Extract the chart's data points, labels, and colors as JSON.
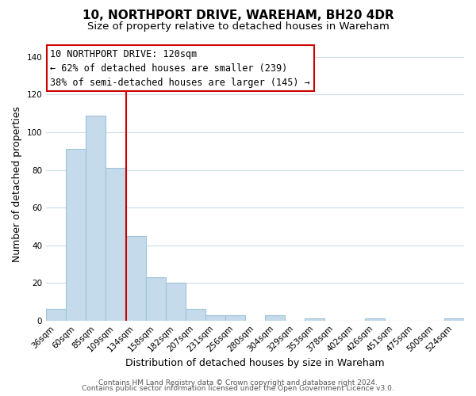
{
  "title": "10, NORTHPORT DRIVE, WAREHAM, BH20 4DR",
  "subtitle": "Size of property relative to detached houses in Wareham",
  "xlabel": "Distribution of detached houses by size in Wareham",
  "ylabel": "Number of detached properties",
  "bar_labels": [
    "36sqm",
    "60sqm",
    "85sqm",
    "109sqm",
    "134sqm",
    "158sqm",
    "182sqm",
    "207sqm",
    "231sqm",
    "256sqm",
    "280sqm",
    "304sqm",
    "329sqm",
    "353sqm",
    "378sqm",
    "402sqm",
    "426sqm",
    "451sqm",
    "475sqm",
    "500sqm",
    "524sqm"
  ],
  "bar_values": [
    6,
    91,
    109,
    81,
    45,
    23,
    20,
    6,
    3,
    3,
    0,
    3,
    0,
    1,
    0,
    0,
    1,
    0,
    0,
    0,
    1
  ],
  "bar_color": "#c5daea",
  "bar_edge_color": "#a0c4d8",
  "vline_x": 3.5,
  "vline_color": "#cc0000",
  "annotation_title": "10 NORTHPORT DRIVE: 120sqm",
  "annotation_line1": "← 62% of detached houses are smaller (239)",
  "annotation_line2": "38% of semi-detached houses are larger (145) →",
  "annotation_box_color": "#ffffff",
  "annotation_box_edge": "#cc0000",
  "ylim": [
    0,
    145
  ],
  "yticks": [
    0,
    20,
    40,
    60,
    80,
    100,
    120,
    140
  ],
  "footer1": "Contains HM Land Registry data © Crown copyright and database right 2024.",
  "footer2": "Contains public sector information licensed under the Open Government Licence v3.0.",
  "background_color": "#ffffff",
  "grid_color": "#ccdce8",
  "title_fontsize": 11,
  "subtitle_fontsize": 9.5,
  "axis_label_fontsize": 9,
  "tick_fontsize": 7.5,
  "footer_fontsize": 6.5,
  "annotation_fontsize": 8.5
}
